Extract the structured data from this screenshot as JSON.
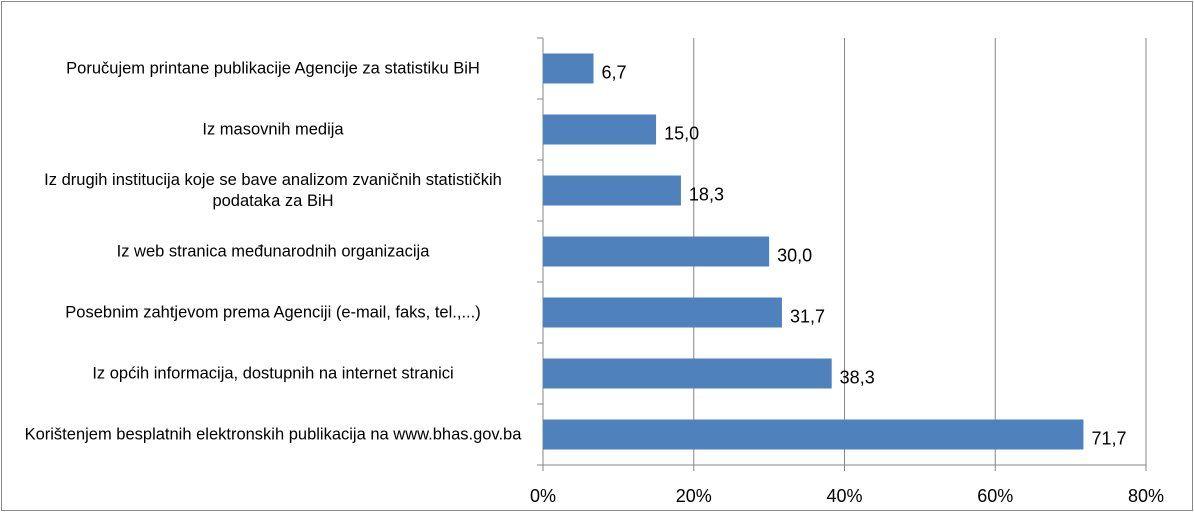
{
  "chart_data": {
    "type": "bar",
    "orientation": "horizontal",
    "categories": [
      "Poručujem printane publikacije Agencije za statistiku BiH",
      "Iz masovnih medija",
      "Iz drugih institucija koje se bave analizom zvaničnih statističkih podataka za BiH",
      "Iz web stranica međunarodnih organizacija",
      "Posebnim zahtjevom prema Agenciji (e-mail, faks, tel.,...)",
      "Iz općih informacija, dostupnih na internet stranici",
      "Korištenjem besplatnih elektronskih publikacija na www.bhas.gov.ba"
    ],
    "values": [
      6.7,
      15.0,
      18.3,
      30.0,
      31.7,
      38.3,
      71.7
    ],
    "value_labels": [
      "6,7",
      "15,0",
      "18,3",
      "30,0",
      "31,7",
      "38,3",
      "71,7"
    ],
    "color": "#4f81bd",
    "xlim": [
      0,
      80
    ],
    "xticks": [
      {
        "value": 0,
        "label": "0%"
      },
      {
        "value": 20,
        "label": "20%"
      },
      {
        "value": 40,
        "label": "40%"
      },
      {
        "value": 60,
        "label": "60%"
      },
      {
        "value": 80,
        "label": "80%"
      }
    ],
    "grid": true
  }
}
